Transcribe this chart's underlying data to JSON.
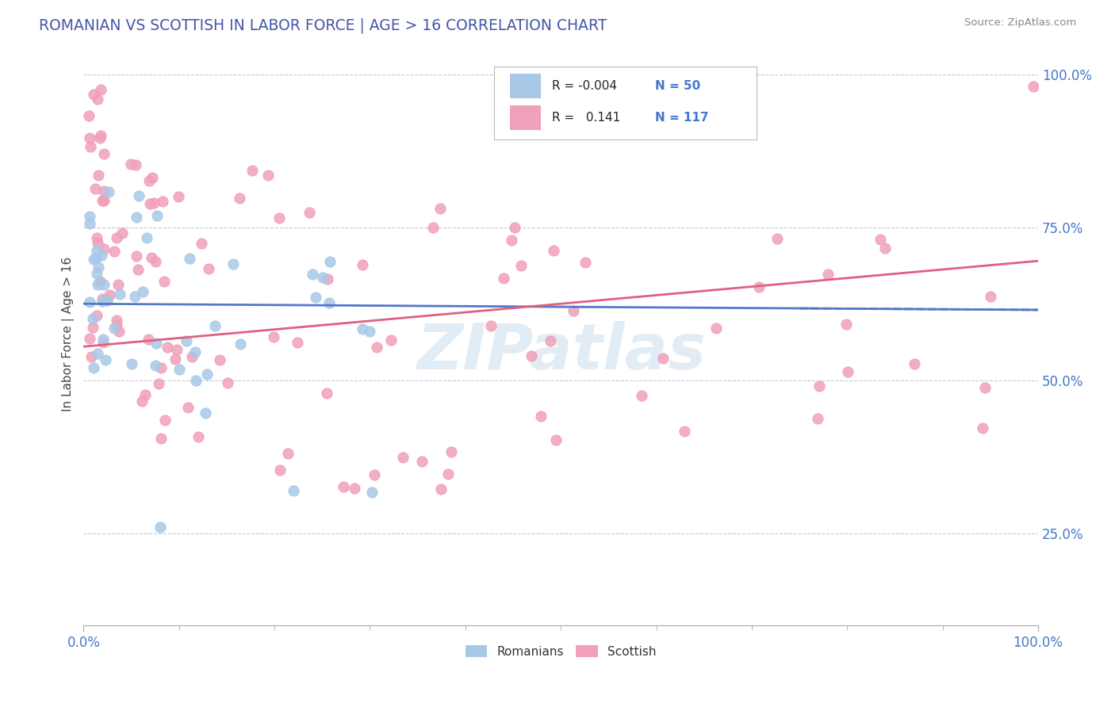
{
  "title": "ROMANIAN VS SCOTTISH IN LABOR FORCE | AGE > 16 CORRELATION CHART",
  "source_text": "Source: ZipAtlas.com",
  "ylabel": "In Labor Force | Age > 16",
  "xlim": [
    0.0,
    1.0
  ],
  "ylim": [
    0.1,
    1.05
  ],
  "legend_r1": "-0.004",
  "legend_n1": "50",
  "legend_r2": "0.141",
  "legend_n2": "117",
  "color_romanian": "#a8c8e8",
  "color_scottish": "#f0a0b8",
  "color_trendline_romanian": "#5577cc",
  "color_trendline_scottish": "#e06080",
  "background_color": "#ffffff",
  "grid_color": "#c8c8d8",
  "watermark_color": "#b8d0e8",
  "watermark_alpha": 0.4,
  "title_color": "#4455aa",
  "source_color": "#888888",
  "tick_color": "#4477cc",
  "ylabel_color": "#444444",
  "ro_trend_start_y": 0.625,
  "ro_trend_end_y": 0.615,
  "sc_trend_start_y": 0.555,
  "sc_trend_end_y": 0.695
}
